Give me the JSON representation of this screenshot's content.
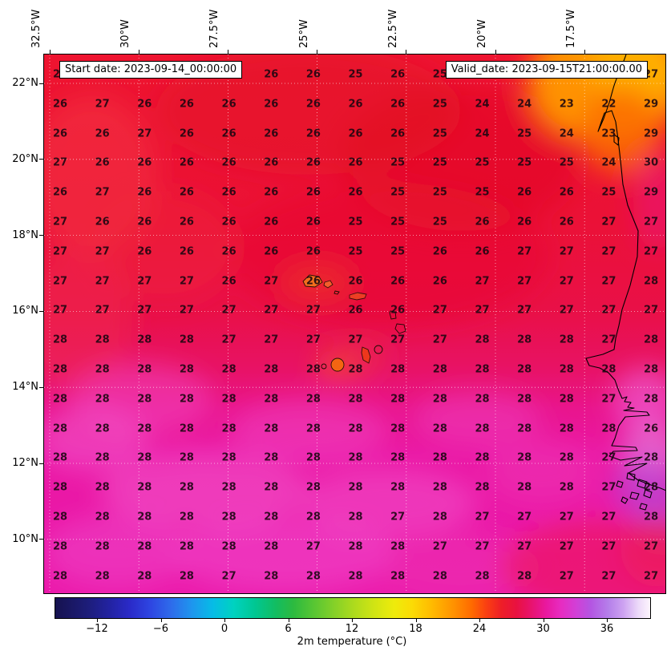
{
  "chart_data": {
    "type": "heatmap",
    "title_left": "Start date: 2023-09-14_00:00:00",
    "title_right": "Valid_date: 2023-09-15T21:00:00.00",
    "variable": "2m temperature (°C)",
    "x_axis": {
      "kind": "longitude",
      "ticks": [
        "32.5°W",
        "30°W",
        "27.5°W",
        "25°W",
        "22.5°W",
        "20°W",
        "17.5°W"
      ]
    },
    "y_axis": {
      "kind": "latitude",
      "ticks": [
        "22°N",
        "20°N",
        "18°N",
        "16°N",
        "14°N",
        "12°N",
        "10°N"
      ]
    },
    "grid": [
      [
        27,
        26,
        26,
        26,
        26,
        26,
        26,
        25,
        26,
        25,
        25,
        24,
        24,
        23,
        27
      ],
      [
        26,
        27,
        26,
        26,
        26,
        26,
        26,
        26,
        26,
        25,
        24,
        24,
        23,
        22,
        29
      ],
      [
        26,
        26,
        27,
        26,
        26,
        26,
        26,
        26,
        26,
        25,
        24,
        25,
        24,
        23,
        29
      ],
      [
        27,
        26,
        26,
        26,
        26,
        26,
        26,
        26,
        25,
        25,
        25,
        25,
        25,
        24,
        30
      ],
      [
        26,
        27,
        26,
        26,
        26,
        26,
        26,
        26,
        25,
        25,
        25,
        26,
        26,
        25,
        29
      ],
      [
        27,
        26,
        26,
        26,
        26,
        26,
        26,
        25,
        25,
        25,
        26,
        26,
        26,
        27,
        27
      ],
      [
        27,
        27,
        26,
        26,
        26,
        26,
        26,
        25,
        25,
        26,
        26,
        27,
        27,
        27,
        27
      ],
      [
        27,
        27,
        27,
        27,
        26,
        27,
        26,
        26,
        26,
        26,
        27,
        27,
        27,
        27,
        28
      ],
      [
        27,
        27,
        27,
        27,
        27,
        27,
        27,
        26,
        26,
        27,
        27,
        27,
        27,
        27,
        27
      ],
      [
        28,
        28,
        28,
        28,
        27,
        27,
        27,
        27,
        27,
        27,
        28,
        28,
        28,
        27,
        28
      ],
      [
        28,
        28,
        28,
        28,
        28,
        28,
        28,
        28,
        28,
        28,
        28,
        28,
        28,
        28,
        28
      ],
      [
        28,
        28,
        28,
        28,
        28,
        28,
        28,
        28,
        28,
        28,
        28,
        28,
        28,
        27,
        28
      ],
      [
        28,
        28,
        28,
        28,
        28,
        28,
        28,
        28,
        28,
        28,
        28,
        28,
        28,
        28,
        26
      ],
      [
        28,
        28,
        28,
        28,
        28,
        28,
        28,
        28,
        28,
        28,
        28,
        28,
        28,
        27,
        28
      ],
      [
        28,
        28,
        28,
        28,
        28,
        28,
        28,
        28,
        28,
        28,
        28,
        28,
        28,
        27,
        28
      ],
      [
        28,
        28,
        28,
        28,
        28,
        28,
        28,
        28,
        27,
        28,
        27,
        27,
        27,
        27,
        28
      ],
      [
        28,
        28,
        28,
        28,
        28,
        28,
        27,
        28,
        28,
        27,
        27,
        27,
        27,
        27,
        27
      ],
      [
        28,
        28,
        28,
        28,
        27,
        28,
        28,
        28,
        28,
        28,
        28,
        28,
        27,
        27,
        27
      ]
    ],
    "value_range_shown": [
      22,
      30
    ],
    "colorbar": {
      "label": "2m temperature (°C)",
      "vmin": -16,
      "vmax": 40,
      "tick_values": [
        -12,
        -6,
        0,
        6,
        12,
        18,
        24,
        30,
        36
      ],
      "tick_labels": [
        "−12",
        "−6",
        "0",
        "6",
        "12",
        "18",
        "24",
        "30",
        "36"
      ],
      "stops": [
        [
          0.0,
          "#16124f"
        ],
        [
          0.055,
          "#1d1d7a"
        ],
        [
          0.09,
          "#2222a0"
        ],
        [
          0.125,
          "#2a2ac8"
        ],
        [
          0.16,
          "#2e46e2"
        ],
        [
          0.195,
          "#2e6ceb"
        ],
        [
          0.23,
          "#1e96ee"
        ],
        [
          0.265,
          "#06bce6"
        ],
        [
          0.3,
          "#00d2c0"
        ],
        [
          0.335,
          "#00c793"
        ],
        [
          0.37,
          "#12bd62"
        ],
        [
          0.4,
          "#2cba40"
        ],
        [
          0.435,
          "#58c633"
        ],
        [
          0.47,
          "#86d128"
        ],
        [
          0.5,
          "#abda1e"
        ],
        [
          0.535,
          "#cfe414"
        ],
        [
          0.57,
          "#eeeb0b"
        ],
        [
          0.6,
          "#fbdb05"
        ],
        [
          0.635,
          "#ffb800"
        ],
        [
          0.67,
          "#ff9100"
        ],
        [
          0.7,
          "#ff6a00"
        ],
        [
          0.725,
          "#fa3f12"
        ],
        [
          0.75,
          "#ee1e27"
        ],
        [
          0.775,
          "#e91140"
        ],
        [
          0.8,
          "#e8136e"
        ],
        [
          0.825,
          "#e9189f"
        ],
        [
          0.85,
          "#e72cc1"
        ],
        [
          0.875,
          "#d23fd6"
        ],
        [
          0.9,
          "#b455e2"
        ],
        [
          0.93,
          "#b57fea"
        ],
        [
          0.955,
          "#cda2f1"
        ],
        [
          0.98,
          "#ecd9f9"
        ],
        [
          1.0,
          "#fdf5fd"
        ]
      ]
    },
    "field_colors": {
      "red_26": "#ea1430",
      "crimson_27": "#e8125d",
      "magenta_28": "#ea17a4",
      "orange_cool_22": "#ff9800",
      "violet_patch": "#ab4fe0"
    }
  }
}
